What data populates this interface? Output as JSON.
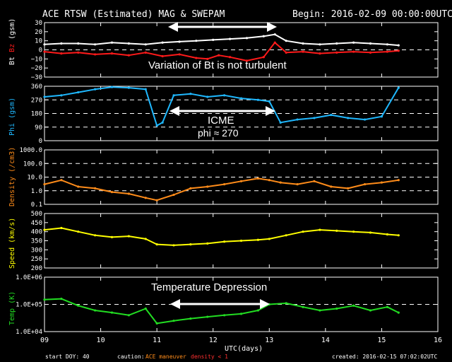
{
  "header": {
    "title": "ACE RTSW (Estimated) MAG & SWEPAM",
    "begin": "Begin: 2016-02-09 00:00:00UTC"
  },
  "footer": {
    "start_doy": "start DOY: 40",
    "caution": "caution:",
    "ace_maneuver": "ACE maneuver",
    "density_note": "density < 1",
    "created": "created: 2016-02-15 07:02:02UTC"
  },
  "colors": {
    "background": "#000000",
    "bt": "#ffffff",
    "bz": "#ff1a1a",
    "phi": "#1fb8ff",
    "density": "#ff8c1a",
    "speed": "#ffff00",
    "temp": "#22dd22",
    "maneuver": "#ff8c1a",
    "density_warn": "#ff3030"
  },
  "annotations": {
    "bt_text": "Variation of Bt is not turbulent",
    "icme_text": "ICME",
    "phi_text": "phi ≈ 270",
    "temp_text": "Temperature Depression"
  },
  "chart_data": {
    "type": "line",
    "x_label": "UTC(days)",
    "x_ticks": [
      "09",
      "10",
      "11",
      "12",
      "13",
      "14",
      "15",
      "16"
    ],
    "x_range": [
      9,
      16
    ],
    "panels": [
      {
        "id": "bt-bz",
        "ylabel_parts": [
          "Bt",
          "Bz",
          "(gsm)"
        ],
        "ylim": [
          -30,
          30
        ],
        "yticks": [
          "30",
          "20",
          "10",
          "0",
          "−10",
          "−20",
          "−30"
        ],
        "ytick_values": [
          30,
          20,
          10,
          0,
          -10,
          -20,
          -30
        ],
        "dashed_at": [
          0
        ],
        "log": false,
        "series": [
          {
            "name": "Bt",
            "color": "#ffffff",
            "x": [
              9.0,
              9.3,
              9.6,
              9.9,
              10.2,
              10.5,
              10.8,
              11.1,
              11.4,
              11.7,
              12.0,
              12.3,
              12.6,
              12.9,
              13.1,
              13.3,
              13.6,
              13.9,
              14.2,
              14.5,
              14.8,
              15.1,
              15.3
            ],
            "y": [
              6,
              7,
              7,
              6,
              8,
              7,
              6,
              8,
              9,
              10,
              11,
              12,
              13,
              15,
              17,
              10,
              7,
              6,
              7,
              8,
              7,
              6,
              5
            ]
          },
          {
            "name": "Bz",
            "color": "#ff1a1a",
            "x": [
              9.0,
              9.3,
              9.6,
              9.9,
              10.2,
              10.5,
              10.8,
              11.1,
              11.4,
              11.7,
              11.9,
              12.1,
              12.3,
              12.6,
              12.9,
              13.1,
              13.3,
              13.6,
              13.9,
              14.2,
              14.5,
              14.8,
              15.1,
              15.3
            ],
            "y": [
              -2,
              -4,
              -3,
              -5,
              -4,
              -6,
              -3,
              -7,
              -5,
              -9,
              -10,
              -6,
              -8,
              -12,
              -8,
              8,
              -3,
              -2,
              -4,
              -3,
              -2,
              -3,
              -2,
              -1
            ]
          }
        ]
      },
      {
        "id": "phi",
        "ylabel_parts": [
          "Phi (gsm)"
        ],
        "ylim": [
          0,
          360
        ],
        "yticks": [
          "360",
          "270",
          "180",
          "90",
          "0"
        ],
        "ytick_values": [
          360,
          270,
          180,
          90,
          0
        ],
        "dashed_at": [
          90,
          180,
          270
        ],
        "log": false,
        "series": [
          {
            "name": "Phi",
            "color": "#1fb8ff",
            "x": [
              9.0,
              9.3,
              9.6,
              9.9,
              10.2,
              10.5,
              10.8,
              11.0,
              11.1,
              11.3,
              11.6,
              11.9,
              12.2,
              12.5,
              12.8,
              13.0,
              13.2,
              13.5,
              13.8,
              14.1,
              14.4,
              14.7,
              15.0,
              15.3
            ],
            "y": [
              290,
              300,
              320,
              340,
              355,
              350,
              340,
              100,
              120,
              300,
              310,
              290,
              300,
              280,
              270,
              260,
              120,
              140,
              150,
              170,
              150,
              140,
              160,
              350
            ]
          }
        ]
      },
      {
        "id": "density",
        "ylabel_parts": [
          "Density (/cm3)"
        ],
        "ylim": [
          0.1,
          1000
        ],
        "yticks": [
          "1000.0",
          "100.0",
          "10.0",
          "1.0",
          "0.1"
        ],
        "ytick_values": [
          1000,
          100,
          10,
          1,
          0.1
        ],
        "dashed_at": [
          100,
          10,
          1
        ],
        "log": true,
        "series": [
          {
            "name": "Density",
            "color": "#ff8c1a",
            "x": [
              9.0,
              9.3,
              9.6,
              9.9,
              10.2,
              10.5,
              10.8,
              11.0,
              11.3,
              11.6,
              11.9,
              12.2,
              12.5,
              12.8,
              13.0,
              13.2,
              13.5,
              13.8,
              14.1,
              14.4,
              14.7,
              15.0,
              15.3
            ],
            "y": [
              3,
              6,
              2,
              1.5,
              0.8,
              0.6,
              0.3,
              0.2,
              0.5,
              1.5,
              2,
              3,
              5,
              8,
              6,
              4,
              3,
              5,
              2,
              1.5,
              3,
              4,
              6
            ]
          }
        ]
      },
      {
        "id": "speed",
        "ylabel_parts": [
          "Speed (km/s)"
        ],
        "ylim": [
          200,
          500
        ],
        "yticks": [
          "500",
          "450",
          "400",
          "350",
          "300",
          "250",
          "200"
        ],
        "ytick_values": [
          500,
          450,
          400,
          350,
          300,
          250,
          200
        ],
        "dashed_at": [],
        "log": false,
        "series": [
          {
            "name": "Speed",
            "color": "#ffff00",
            "x": [
              9.0,
              9.3,
              9.6,
              9.9,
              10.2,
              10.5,
              10.8,
              11.0,
              11.3,
              11.6,
              11.9,
              12.2,
              12.5,
              12.8,
              13.0,
              13.3,
              13.6,
              13.9,
              14.2,
              14.5,
              14.8,
              15.1,
              15.3
            ],
            "y": [
              410,
              420,
              400,
              380,
              370,
              375,
              360,
              330,
              325,
              330,
              335,
              345,
              350,
              355,
              360,
              380,
              400,
              410,
              405,
              400,
              395,
              385,
              380
            ]
          }
        ]
      },
      {
        "id": "temp",
        "ylabel_parts": [
          "Temp (K)"
        ],
        "ylim": [
          10000,
          1000000
        ],
        "yticks": [
          "1.0E+06",
          "1.0E+05",
          "1.0E+04"
        ],
        "ytick_values": [
          1000000,
          100000,
          10000
        ],
        "dashed_at": [
          100000
        ],
        "log": true,
        "series": [
          {
            "name": "Temp",
            "color": "#22dd22",
            "x": [
              9.0,
              9.3,
              9.6,
              9.9,
              10.2,
              10.5,
              10.8,
              11.0,
              11.3,
              11.6,
              11.9,
              12.2,
              12.5,
              12.8,
              13.0,
              13.3,
              13.6,
              13.9,
              14.2,
              14.5,
              14.8,
              15.1,
              15.3
            ],
            "y": [
              150000,
              160000,
              90000,
              60000,
              50000,
              40000,
              70000,
              20000,
              25000,
              30000,
              35000,
              40000,
              45000,
              60000,
              100000,
              110000,
              80000,
              60000,
              70000,
              90000,
              60000,
              80000,
              50000
            ]
          }
        ]
      }
    ]
  }
}
